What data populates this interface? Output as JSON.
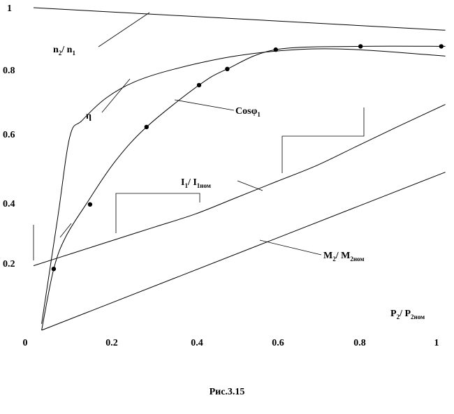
{
  "chart_data": {
    "type": "line",
    "xlim": [
      0,
      1.02
    ],
    "ylim": [
      0,
      1
    ],
    "x_ticks": [
      "0",
      "0.2",
      "0.4",
      "0.6",
      "0.8",
      "1"
    ],
    "y_ticks": [
      "0.2",
      "0.4",
      "0.6",
      "0.8",
      "1"
    ],
    "x_tick_values": [
      0,
      0.2,
      0.4,
      0.6,
      0.8,
      1
    ],
    "y_tick_values": [
      0.2,
      0.4,
      0.6,
      0.8,
      1
    ],
    "grid": false,
    "series": [
      {
        "name": "n2/n1",
        "label": {
          "main": "n",
          "sub1": "2",
          "mid": "/ n",
          "sub2": "1"
        },
        "x": [
          0,
          1.02
        ],
        "y": [
          1.0,
          0.93
        ]
      },
      {
        "name": "η",
        "label": {
          "main": "η"
        },
        "x": [
          0.02,
          0.06,
          0.09,
          0.12,
          0.18,
          0.25,
          0.35,
          0.5,
          0.65,
          0.8,
          1.02
        ],
        "y": [
          0.02,
          0.35,
          0.6,
          0.65,
          0.72,
          0.77,
          0.81,
          0.85,
          0.87,
          0.87,
          0.85
        ]
      },
      {
        "name": "Cosφ1",
        "label": {
          "main": "Cos",
          "greek": "φ",
          "sub1": "1"
        },
        "x": [
          0.02,
          0.05,
          0.08,
          0.13,
          0.2,
          0.28,
          0.41,
          0.48,
          0.6,
          0.81,
          1.02
        ],
        "y": [
          0.0,
          0.19,
          0.29,
          0.39,
          0.52,
          0.63,
          0.76,
          0.81,
          0.87,
          0.88,
          0.88
        ],
        "markers": [
          [
            0.05,
            0.19
          ],
          [
            0.14,
            0.39
          ],
          [
            0.28,
            0.63
          ],
          [
            0.41,
            0.76
          ],
          [
            0.48,
            0.81
          ],
          [
            0.6,
            0.87
          ],
          [
            0.81,
            0.88
          ],
          [
            1.01,
            0.88
          ]
        ]
      },
      {
        "name": "I1/I1ном",
        "label": {
          "main": "I",
          "sub1": "1",
          "mid": "/ I",
          "sub2": "1ном"
        },
        "x": [
          0,
          0.1,
          0.2,
          0.3,
          0.4,
          0.5,
          0.6,
          0.7,
          0.8,
          0.9,
          1.02
        ],
        "y": [
          0.2,
          0.24,
          0.28,
          0.32,
          0.36,
          0.41,
          0.46,
          0.51,
          0.57,
          0.63,
          0.7
        ]
      },
      {
        "name": "M2/M2ном",
        "label": {
          "main": "M",
          "sub1": "2",
          "mid": "/ M",
          "sub2": "2ном"
        },
        "x": [
          0.02,
          1.02
        ],
        "y": [
          0.0,
          0.49
        ]
      }
    ],
    "x_axis_label": {
      "main": "P",
      "sub1": "2",
      "mid": "/ P",
      "sub2": "2ном"
    }
  },
  "caption": "Рис.3.15"
}
